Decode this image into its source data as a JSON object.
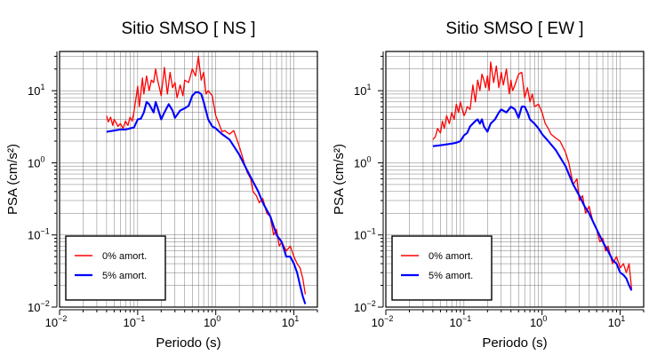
{
  "chart_data": [
    {
      "type": "line",
      "title": "Sitio SMSO [ NS ]",
      "xlabel": "Periodo (s)",
      "ylabel": "PSA (cm/s²)",
      "xscale": "log",
      "yscale": "log",
      "xlim": [
        0.01,
        20
      ],
      "ylim": [
        0.01,
        35
      ],
      "grid": true,
      "legend_position": "bottom-left",
      "x_ticks": [
        {
          "value": 0.01,
          "base": "10",
          "exp": "−2"
        },
        {
          "value": 0.1,
          "base": "10",
          "exp": "−1"
        },
        {
          "value": 1,
          "base": "10",
          "exp": "0"
        },
        {
          "value": 10,
          "base": "10",
          "exp": "1"
        }
      ],
      "y_ticks": [
        {
          "value": 0.01,
          "base": "10",
          "exp": "−2"
        },
        {
          "value": 0.1,
          "base": "10",
          "exp": "−1"
        },
        {
          "value": 1,
          "base": "10",
          "exp": "0"
        },
        {
          "value": 10,
          "base": "10",
          "exp": "1"
        }
      ],
      "series": [
        {
          "name": "0% amort.",
          "color": "#ff0000",
          "x": [
            0.04,
            0.042,
            0.045,
            0.048,
            0.05,
            0.053,
            0.056,
            0.06,
            0.065,
            0.07,
            0.075,
            0.08,
            0.085,
            0.09,
            0.1,
            0.105,
            0.11,
            0.115,
            0.12,
            0.13,
            0.14,
            0.15,
            0.16,
            0.17,
            0.18,
            0.19,
            0.2,
            0.22,
            0.24,
            0.26,
            0.28,
            0.3,
            0.32,
            0.35,
            0.38,
            0.4,
            0.45,
            0.5,
            0.55,
            0.6,
            0.65,
            0.7,
            0.75,
            0.8,
            0.9,
            1.0,
            1.1,
            1.2,
            1.3,
            1.5,
            1.7,
            2.0,
            2.2,
            2.5,
            2.8,
            3.0,
            3.3,
            3.6,
            4.0,
            4.5,
            5.0,
            5.5,
            6.0,
            6.5,
            7.0,
            8.0,
            9.0,
            10.0,
            11.0,
            12.0,
            13.0,
            14.0
          ],
          "values": [
            4.5,
            3.7,
            4.3,
            3.3,
            4.0,
            3.6,
            3.2,
            3.5,
            3.0,
            3.8,
            3.3,
            4.3,
            3.8,
            5.2,
            11.5,
            6.0,
            9.5,
            15,
            9,
            16,
            10,
            14,
            13,
            20,
            14,
            11,
            8.5,
            21,
            9,
            18,
            11,
            13,
            8,
            12,
            8.5,
            14,
            13,
            20,
            16,
            30,
            14,
            18,
            9,
            10,
            8.5,
            4.5,
            3.5,
            2.7,
            2.8,
            2.5,
            2.8,
            1.7,
            1.2,
            0.75,
            0.6,
            0.4,
            0.35,
            0.28,
            0.32,
            0.2,
            0.18,
            0.1,
            0.12,
            0.07,
            0.08,
            0.06,
            0.07,
            0.05,
            0.04,
            0.035,
            0.025,
            0.015
          ]
        },
        {
          "name": "5% amort.",
          "color": "#0000ff",
          "x": [
            0.04,
            0.05,
            0.06,
            0.07,
            0.08,
            0.09,
            0.1,
            0.11,
            0.12,
            0.13,
            0.14,
            0.15,
            0.16,
            0.17,
            0.18,
            0.2,
            0.22,
            0.25,
            0.28,
            0.3,
            0.35,
            0.4,
            0.45,
            0.5,
            0.55,
            0.6,
            0.65,
            0.7,
            0.8,
            0.9,
            1.0,
            1.2,
            1.5,
            2.0,
            2.5,
            3.0,
            3.5,
            4.0,
            5.0,
            6.0,
            7.0,
            8.0,
            9.0,
            10.0,
            11.0,
            12.0,
            13.0,
            14.0
          ],
          "values": [
            2.7,
            2.8,
            2.9,
            2.9,
            3.0,
            3.1,
            4.0,
            4.1,
            5.0,
            7.0,
            6.5,
            5.7,
            5.0,
            7.0,
            5.8,
            4.0,
            5.0,
            6.5,
            5.3,
            4.2,
            5.3,
            5.7,
            6.2,
            8.5,
            9.5,
            9.5,
            9.0,
            7.0,
            4.0,
            3.2,
            3.0,
            2.5,
            2.1,
            1.3,
            0.8,
            0.55,
            0.4,
            0.28,
            0.18,
            0.1,
            0.08,
            0.05,
            0.05,
            0.04,
            0.03,
            0.02,
            0.014,
            0.011
          ]
        }
      ]
    },
    {
      "type": "line",
      "title": "Sitio SMSO [ EW ]",
      "xlabel": "Periodo (s)",
      "ylabel": "PSA (cm/s²)",
      "xscale": "log",
      "yscale": "log",
      "xlim": [
        0.01,
        20
      ],
      "ylim": [
        0.01,
        35
      ],
      "grid": true,
      "legend_position": "bottom-left",
      "x_ticks": [
        {
          "value": 0.01,
          "base": "10",
          "exp": "−2"
        },
        {
          "value": 0.1,
          "base": "10",
          "exp": "−1"
        },
        {
          "value": 1,
          "base": "10",
          "exp": "0"
        },
        {
          "value": 10,
          "base": "10",
          "exp": "1"
        }
      ],
      "y_ticks": [
        {
          "value": 0.01,
          "base": "10",
          "exp": "−2"
        },
        {
          "value": 0.1,
          "base": "10",
          "exp": "−1"
        },
        {
          "value": 1,
          "base": "10",
          "exp": "0"
        },
        {
          "value": 10,
          "base": "10",
          "exp": "1"
        }
      ],
      "series": [
        {
          "name": "0% amort.",
          "color": "#ff0000",
          "x": [
            0.04,
            0.043,
            0.046,
            0.05,
            0.053,
            0.056,
            0.06,
            0.065,
            0.07,
            0.075,
            0.08,
            0.085,
            0.09,
            0.1,
            0.105,
            0.11,
            0.12,
            0.13,
            0.14,
            0.15,
            0.16,
            0.17,
            0.18,
            0.19,
            0.2,
            0.21,
            0.22,
            0.24,
            0.26,
            0.28,
            0.3,
            0.32,
            0.35,
            0.38,
            0.4,
            0.42,
            0.45,
            0.5,
            0.55,
            0.6,
            0.65,
            0.7,
            0.75,
            0.8,
            0.9,
            1.0,
            1.1,
            1.2,
            1.3,
            1.5,
            1.7,
            2.0,
            2.2,
            2.5,
            2.8,
            3.0,
            3.3,
            3.6,
            4.0,
            4.5,
            5.0,
            5.5,
            6.0,
            6.5,
            7.0,
            8.0,
            9.0,
            10.0,
            11.0,
            12.0,
            13.0,
            14.0
          ],
          "values": [
            2.1,
            2.3,
            3.0,
            2.6,
            3.8,
            3.0,
            4.5,
            3.5,
            5.0,
            4.0,
            6.5,
            5.0,
            7.0,
            4.5,
            5.0,
            6.0,
            5.5,
            12,
            7,
            14,
            10,
            17,
            14,
            11,
            16,
            10,
            25,
            13,
            22,
            11,
            18,
            12,
            20,
            9,
            14,
            10,
            12,
            17,
            18,
            8,
            11,
            7,
            9,
            6,
            6.5,
            5,
            3.5,
            3.0,
            2.5,
            2.2,
            2.0,
            1.4,
            1.0,
            0.5,
            0.6,
            0.3,
            0.35,
            0.2,
            0.25,
            0.15,
            0.12,
            0.08,
            0.09,
            0.06,
            0.07,
            0.04,
            0.05,
            0.035,
            0.04,
            0.03,
            0.04,
            0.018
          ]
        },
        {
          "name": "5% amort.",
          "color": "#0000ff",
          "x": [
            0.04,
            0.05,
            0.06,
            0.07,
            0.08,
            0.09,
            0.1,
            0.11,
            0.12,
            0.13,
            0.14,
            0.15,
            0.16,
            0.17,
            0.18,
            0.2,
            0.22,
            0.25,
            0.28,
            0.3,
            0.35,
            0.4,
            0.45,
            0.5,
            0.55,
            0.6,
            0.65,
            0.7,
            0.8,
            0.9,
            1.0,
            1.2,
            1.5,
            2.0,
            2.5,
            3.0,
            3.5,
            4.0,
            5.0,
            6.0,
            7.0,
            8.0,
            9.0,
            10.0,
            11.0,
            12.0,
            13.0,
            14.0
          ],
          "values": [
            1.7,
            1.75,
            1.8,
            1.85,
            1.9,
            2.0,
            2.4,
            2.6,
            3.2,
            3.5,
            3.8,
            4.0,
            3.5,
            4.0,
            3.2,
            2.7,
            3.5,
            4.0,
            5.0,
            5.5,
            5.0,
            6.0,
            5.5,
            4.2,
            6.0,
            6.0,
            5.0,
            4.0,
            3.5,
            3.0,
            2.5,
            2.0,
            1.5,
            0.9,
            0.5,
            0.35,
            0.25,
            0.2,
            0.12,
            0.08,
            0.06,
            0.045,
            0.04,
            0.03,
            0.028,
            0.025,
            0.02,
            0.017
          ]
        }
      ]
    }
  ]
}
